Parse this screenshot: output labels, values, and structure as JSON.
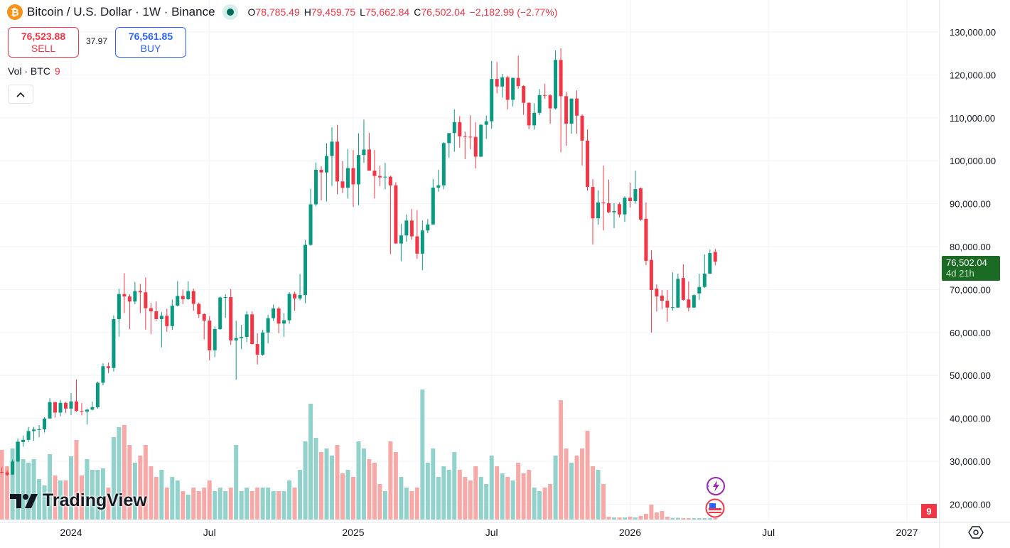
{
  "header": {
    "symbol_icon": "bitcoin-icon",
    "title": "Bitcoin / U.S. Dollar · 1W · Binance",
    "market_status": "market-open-dot",
    "ohlc": {
      "o_label": "O",
      "o": "78,785.49",
      "h_label": "H",
      "h": "79,459.75",
      "l_label": "L",
      "l": "75,662.84",
      "c_label": "C",
      "c": "76,502.04",
      "change": "−2,182.99 (−2.77%)"
    }
  },
  "trade": {
    "sell_price": "76,523.88",
    "sell_label": "SELL",
    "spread": "37.97",
    "buy_price": "76,561.85",
    "buy_label": "BUY"
  },
  "volume_legend": {
    "label": "Vol · BTC",
    "value": "9"
  },
  "price_axis": {
    "labels": [
      "130,000.00",
      "120,000.00",
      "110,000.00",
      "100,000.00",
      "90,000.00",
      "80,000.00",
      "70,000.00",
      "60,000.00",
      "50,000.00",
      "40,000.00",
      "30,000.00",
      "20,000.00"
    ],
    "last_price": "76,502.04",
    "countdown": "4d 21h",
    "volume_badge": "9"
  },
  "time_axis": {
    "labels": [
      {
        "text": "2024",
        "date": "2024-01-01"
      },
      {
        "text": "Jul",
        "date": "2024-07-01"
      },
      {
        "text": "2025",
        "date": "2025-01-06"
      },
      {
        "text": "Jul",
        "date": "2025-07-07"
      },
      {
        "text": "2026",
        "date": "2026-01-05"
      },
      {
        "text": "Jul",
        "date": "2026-07-06"
      },
      {
        "text": "2027",
        "date": "2027-01-04"
      }
    ]
  },
  "branding": {
    "logo": "TradingView"
  },
  "colors": {
    "up": "#089981",
    "down": "#f23645",
    "vol_up": "#92d2cc",
    "vol_down": "#f7a9a7",
    "grid": "#f0f3fa",
    "last_price_bg": "#1b6b25"
  },
  "chart_data": {
    "type": "candlestick",
    "interval": "1W",
    "ylim": [
      18000,
      132000
    ],
    "grid": true,
    "columns": [
      "week",
      "open",
      "high",
      "low",
      "close",
      "volume"
    ],
    "candles": [
      [
        "2023-10-02",
        27500,
        28600,
        27200,
        27400,
        196000
      ],
      [
        "2023-10-09",
        27400,
        27900,
        26500,
        26900,
        150000
      ],
      [
        "2023-10-16",
        26900,
        30400,
        26800,
        29950,
        200000
      ],
      [
        "2023-10-23",
        29950,
        35300,
        29800,
        34500,
        220000
      ],
      [
        "2023-10-30",
        34500,
        36000,
        33400,
        35000,
        170000
      ],
      [
        "2023-11-06",
        35000,
        38000,
        34500,
        37050,
        160000
      ],
      [
        "2023-11-13",
        37050,
        37990,
        34800,
        37400,
        170000
      ],
      [
        "2023-11-20",
        37400,
        38450,
        35600,
        37450,
        114000
      ],
      [
        "2023-11-27",
        37450,
        40250,
        36700,
        39970,
        96000
      ],
      [
        "2023-12-04",
        39970,
        44700,
        39970,
        43790,
        184000
      ],
      [
        "2023-12-11",
        43790,
        43800,
        40200,
        41350,
        124000
      ],
      [
        "2023-12-18",
        41350,
        44300,
        40500,
        43600,
        110000
      ],
      [
        "2023-12-25",
        43600,
        43800,
        41300,
        42280,
        110000
      ],
      [
        "2024-01-01",
        42280,
        45900,
        40750,
        43950,
        178000
      ],
      [
        "2024-01-08",
        43950,
        49050,
        41500,
        41730,
        224000
      ],
      [
        "2024-01-15",
        41730,
        43580,
        40700,
        41580,
        124000
      ],
      [
        "2024-01-22",
        41580,
        42250,
        38550,
        42030,
        170000
      ],
      [
        "2024-01-29",
        42030,
        43880,
        41850,
        42580,
        140000
      ],
      [
        "2024-02-05",
        42580,
        48590,
        42280,
        48300,
        140000
      ],
      [
        "2024-02-12",
        48300,
        52820,
        47700,
        52140,
        144000
      ],
      [
        "2024-02-19",
        52140,
        52990,
        50520,
        51730,
        90000
      ],
      [
        "2024-02-26",
        51730,
        64000,
        50900,
        63110,
        232000
      ],
      [
        "2024-03-04",
        63110,
        70170,
        59000,
        68960,
        260000
      ],
      [
        "2024-03-11",
        68960,
        73780,
        64530,
        68390,
        266000
      ],
      [
        "2024-03-18",
        68390,
        68900,
        60760,
        67210,
        210000
      ],
      [
        "2024-03-25",
        67210,
        71770,
        66600,
        69650,
        160000
      ],
      [
        "2024-04-01",
        69650,
        71290,
        64500,
        69360,
        180000
      ],
      [
        "2024-04-08",
        69360,
        72800,
        60660,
        65660,
        210000
      ],
      [
        "2024-04-15",
        65660,
        66900,
        59600,
        64940,
        150000
      ],
      [
        "2024-04-22",
        64940,
        67230,
        62790,
        63120,
        120000
      ],
      [
        "2024-04-29",
        63120,
        64740,
        56550,
        63900,
        140000
      ],
      [
        "2024-05-06",
        63900,
        65500,
        60180,
        61480,
        90000
      ],
      [
        "2024-05-13",
        61480,
        67700,
        60600,
        66270,
        120000
      ],
      [
        "2024-05-20",
        66270,
        71980,
        66060,
        68520,
        110000
      ],
      [
        "2024-05-27",
        68520,
        70000,
        66600,
        67760,
        80000
      ],
      [
        "2024-06-03",
        67760,
        71950,
        67600,
        69650,
        70000
      ],
      [
        "2024-06-10",
        69650,
        70200,
        65060,
        66670,
        90000
      ],
      [
        "2024-06-17",
        66670,
        66950,
        63380,
        64260,
        80000
      ],
      [
        "2024-06-24",
        64260,
        64500,
        58400,
        62770,
        90000
      ],
      [
        "2024-07-01",
        62770,
        63800,
        53500,
        55850,
        110000
      ],
      [
        "2024-07-08",
        55850,
        61400,
        54260,
        60800,
        80000
      ],
      [
        "2024-07-15",
        60800,
        68370,
        60630,
        68160,
        90000
      ],
      [
        "2024-07-22",
        68160,
        68900,
        63400,
        68250,
        80000
      ],
      [
        "2024-07-29",
        68250,
        70080,
        57120,
        58160,
        90000
      ],
      [
        "2024-08-05",
        58160,
        62750,
        49000,
        58710,
        210000
      ],
      [
        "2024-08-12",
        58710,
        61800,
        56120,
        58970,
        80000
      ],
      [
        "2024-08-19",
        58970,
        65000,
        57780,
        64220,
        90000
      ],
      [
        "2024-08-26",
        64220,
        64950,
        57200,
        57300,
        80000
      ],
      [
        "2024-09-02",
        57300,
        59800,
        52550,
        54840,
        90000
      ],
      [
        "2024-09-09",
        54840,
        60670,
        54580,
        60000,
        90000
      ],
      [
        "2024-09-16",
        60000,
        64130,
        57490,
        63330,
        90000
      ],
      [
        "2024-09-23",
        63330,
        66500,
        62690,
        65600,
        80000
      ],
      [
        "2024-09-30",
        65600,
        66000,
        59830,
        62070,
        80000
      ],
      [
        "2024-10-07",
        62070,
        64480,
        58950,
        62850,
        80000
      ],
      [
        "2024-10-14",
        62850,
        69400,
        62050,
        68980,
        110000
      ],
      [
        "2024-10-21",
        68980,
        69520,
        65060,
        67940,
        90000
      ],
      [
        "2024-10-28",
        67940,
        73620,
        67480,
        68730,
        140000
      ],
      [
        "2024-11-04",
        68730,
        81500,
        66830,
        80400,
        220000
      ],
      [
        "2024-11-11",
        80400,
        93480,
        80200,
        89850,
        326000
      ],
      [
        "2024-11-18",
        89850,
        99590,
        89400,
        97900,
        230000
      ],
      [
        "2024-11-25",
        97900,
        98700,
        90790,
        97280,
        190000
      ],
      [
        "2024-12-02",
        97280,
        104090,
        90500,
        101120,
        200000
      ],
      [
        "2024-12-09",
        101120,
        107780,
        94150,
        104460,
        180000
      ],
      [
        "2024-12-16",
        104460,
        108350,
        92180,
        95190,
        210000
      ],
      [
        "2024-12-23",
        95190,
        99960,
        92500,
        93710,
        130000
      ],
      [
        "2024-12-30",
        93710,
        102700,
        91200,
        98300,
        140000
      ],
      [
        "2025-01-06",
        98300,
        102500,
        89250,
        94500,
        120000
      ],
      [
        "2025-01-13",
        94500,
        106400,
        89650,
        101330,
        220000
      ],
      [
        "2025-01-20",
        101330,
        109590,
        99550,
        102620,
        200000
      ],
      [
        "2025-01-27",
        102620,
        106500,
        97780,
        97700,
        170000
      ],
      [
        "2025-02-03",
        97700,
        102500,
        91230,
        96460,
        160000
      ],
      [
        "2025-02-10",
        96460,
        98830,
        94090,
        96120,
        100000
      ],
      [
        "2025-02-17",
        96120,
        99500,
        93390,
        96280,
        80000
      ],
      [
        "2025-02-24",
        96280,
        96500,
        78250,
        94270,
        220000
      ],
      [
        "2025-03-03",
        94270,
        95000,
        81500,
        80730,
        190000
      ],
      [
        "2025-03-10",
        80730,
        85300,
        76600,
        82600,
        120000
      ],
      [
        "2025-03-17",
        82600,
        87500,
        81150,
        86080,
        90000
      ],
      [
        "2025-03-24",
        86080,
        88750,
        81600,
        82390,
        80000
      ],
      [
        "2025-03-31",
        82390,
        88500,
        77150,
        78370,
        90000
      ],
      [
        "2025-04-07",
        78370,
        86100,
        74500,
        83760,
        366000
      ],
      [
        "2025-04-14",
        83760,
        86430,
        83100,
        85170,
        160000
      ],
      [
        "2025-04-21",
        85170,
        95760,
        85140,
        93750,
        200000
      ],
      [
        "2025-04-28",
        93750,
        97900,
        92800,
        94280,
        120000
      ],
      [
        "2025-05-05",
        94280,
        104340,
        93370,
        104120,
        150000
      ],
      [
        "2025-05-12",
        104120,
        105820,
        100700,
        106450,
        140000
      ],
      [
        "2025-05-19",
        106450,
        111980,
        102100,
        109000,
        190000
      ],
      [
        "2025-05-26",
        109000,
        110400,
        103100,
        105700,
        140000
      ],
      [
        "2025-06-02",
        105700,
        106800,
        100370,
        105600,
        120000
      ],
      [
        "2025-06-09",
        105600,
        110580,
        102660,
        105560,
        110000
      ],
      [
        "2025-06-16",
        105560,
        108950,
        98200,
        100960,
        150000
      ],
      [
        "2025-06-23",
        100960,
        108530,
        100850,
        108380,
        120000
      ],
      [
        "2025-06-30",
        108380,
        110530,
        105100,
        109200,
        100000
      ],
      [
        "2025-07-07",
        109200,
        123220,
        107450,
        119050,
        180000
      ],
      [
        "2025-07-14",
        119050,
        123000,
        115700,
        117300,
        150000
      ],
      [
        "2025-07-21",
        117300,
        120250,
        114720,
        119450,
        130000
      ],
      [
        "2025-07-28",
        119450,
        119800,
        112000,
        114200,
        120000
      ],
      [
        "2025-08-04",
        114200,
        119400,
        112650,
        119300,
        110000
      ],
      [
        "2025-08-11",
        119300,
        124470,
        116800,
        117400,
        160000
      ],
      [
        "2025-08-18",
        117400,
        117600,
        110700,
        113500,
        130000
      ],
      [
        "2025-08-25",
        113500,
        113640,
        107350,
        108250,
        140000
      ],
      [
        "2025-09-01",
        108250,
        113400,
        107250,
        111150,
        90000
      ],
      [
        "2025-09-08",
        111150,
        116700,
        110630,
        115300,
        80000
      ],
      [
        "2025-09-15",
        115300,
        117900,
        114400,
        115250,
        90000
      ],
      [
        "2025-09-22",
        115250,
        115550,
        108650,
        112200,
        100000
      ],
      [
        "2025-09-29",
        112200,
        125700,
        111950,
        123500,
        180000
      ],
      [
        "2025-10-06",
        123500,
        126200,
        102000,
        115050,
        336000
      ],
      [
        "2025-10-13",
        115050,
        116000,
        103500,
        108650,
        200000
      ],
      [
        "2025-10-20",
        108650,
        114000,
        106300,
        114500,
        160000
      ],
      [
        "2025-10-27",
        114500,
        116400,
        106300,
        110500,
        180000
      ],
      [
        "2025-11-03",
        110500,
        110800,
        98900,
        104700,
        200000
      ],
      [
        "2025-11-10",
        104700,
        107300,
        93000,
        93900,
        250000
      ],
      [
        "2025-11-17",
        93900,
        95700,
        80500,
        86600,
        150000
      ],
      [
        "2025-11-24",
        86600,
        93100,
        85100,
        90300,
        140000
      ],
      [
        "2025-12-01",
        90300,
        98900,
        83800,
        90100,
        100000
      ],
      [
        "2025-12-08",
        90100,
        95600,
        87800,
        88000,
        8000
      ],
      [
        "2025-12-15",
        88000,
        90100,
        84300,
        88300,
        6000
      ],
      [
        "2025-12-22",
        89900,
        90300,
        86800,
        87500,
        6000
      ],
      [
        "2025-12-29",
        87500,
        91700,
        85800,
        91400,
        6000
      ],
      [
        "2026-01-05",
        91400,
        94900,
        89100,
        90600,
        8000
      ],
      [
        "2026-01-12",
        90600,
        97700,
        90000,
        93400,
        6000
      ],
      [
        "2026-01-19",
        93600,
        93800,
        86000,
        86300,
        10000
      ],
      [
        "2026-01-26",
        86500,
        90300,
        75700,
        76700,
        16000
      ],
      [
        "2026-02-02",
        76900,
        79200,
        60000,
        69900,
        42000
      ],
      [
        "2026-02-09",
        70200,
        71200,
        64900,
        68400,
        20000
      ],
      [
        "2026-02-16",
        68600,
        69900,
        65400,
        67400,
        24000
      ],
      [
        "2026-02-23",
        67400,
        69900,
        62500,
        65800,
        8000
      ],
      [
        "2026-03-02",
        65800,
        74000,
        65100,
        65900,
        5000
      ],
      [
        "2026-03-09",
        65800,
        73700,
        65800,
        72500,
        5000
      ],
      [
        "2026-03-16",
        72700,
        75900,
        67400,
        67600,
        4000
      ],
      [
        "2026-03-23",
        67700,
        71900,
        64900,
        65800,
        4000
      ],
      [
        "2026-03-30",
        65800,
        68900,
        65800,
        68700,
        4000
      ],
      [
        "2026-04-06",
        69100,
        73700,
        67600,
        70600,
        4000
      ],
      [
        "2026-04-13",
        70600,
        78200,
        70400,
        73700,
        4000
      ],
      [
        "2026-04-20",
        73700,
        79300,
        73700,
        78500,
        4000
      ],
      [
        "2026-04-27",
        78785.49,
        79459.75,
        75662.84,
        76502.04,
        4000
      ]
    ]
  }
}
